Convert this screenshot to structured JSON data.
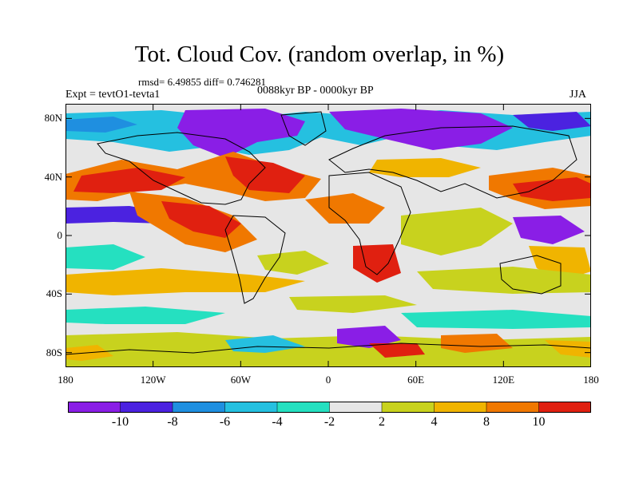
{
  "title": "Tot. Cloud Cov. (random overlap, in %)",
  "stats_line": "rmsd= 6.49855 diff= 0.746281",
  "expt_label": "Expt = tevtO1-tevta1",
  "period_label": "0088kyr BP - 0000kyr BP",
  "season_label": "JJA",
  "axes": {
    "lat_ticks": [
      {
        "label": "80N",
        "value": 80
      },
      {
        "label": "40N",
        "value": 40
      },
      {
        "label": "0",
        "value": 0
      },
      {
        "label": "40S",
        "value": -40
      },
      {
        "label": "80S",
        "value": -80
      }
    ],
    "lon_ticks": [
      {
        "label": "180",
        "value": -180
      },
      {
        "label": "120W",
        "value": -120
      },
      {
        "label": "60W",
        "value": -60
      },
      {
        "label": "0",
        "value": 0
      },
      {
        "label": "60E",
        "value": 60
      },
      {
        "label": "120E",
        "value": 120
      },
      {
        "label": "180",
        "value": 180
      }
    ],
    "lat_range": [
      -90,
      90
    ],
    "lon_range": [
      -180,
      180
    ]
  },
  "colorbar": {
    "levels": [
      -10,
      -8,
      -6,
      -4,
      -2,
      2,
      4,
      8,
      10
    ],
    "labels": [
      "-10",
      "-8",
      "-6",
      "-4",
      "-2",
      "2",
      "4",
      "8",
      "10"
    ],
    "colors": [
      "#8a1ee6",
      "#4b22e0",
      "#1f8fe0",
      "#25c0e0",
      "#25e0c0",
      "#e6e6e6",
      "#c8d21e",
      "#f0b400",
      "#f07800",
      "#e02010"
    ]
  },
  "map_colors": {
    "background": "#e6e6e6",
    "coast": "#000000"
  }
}
